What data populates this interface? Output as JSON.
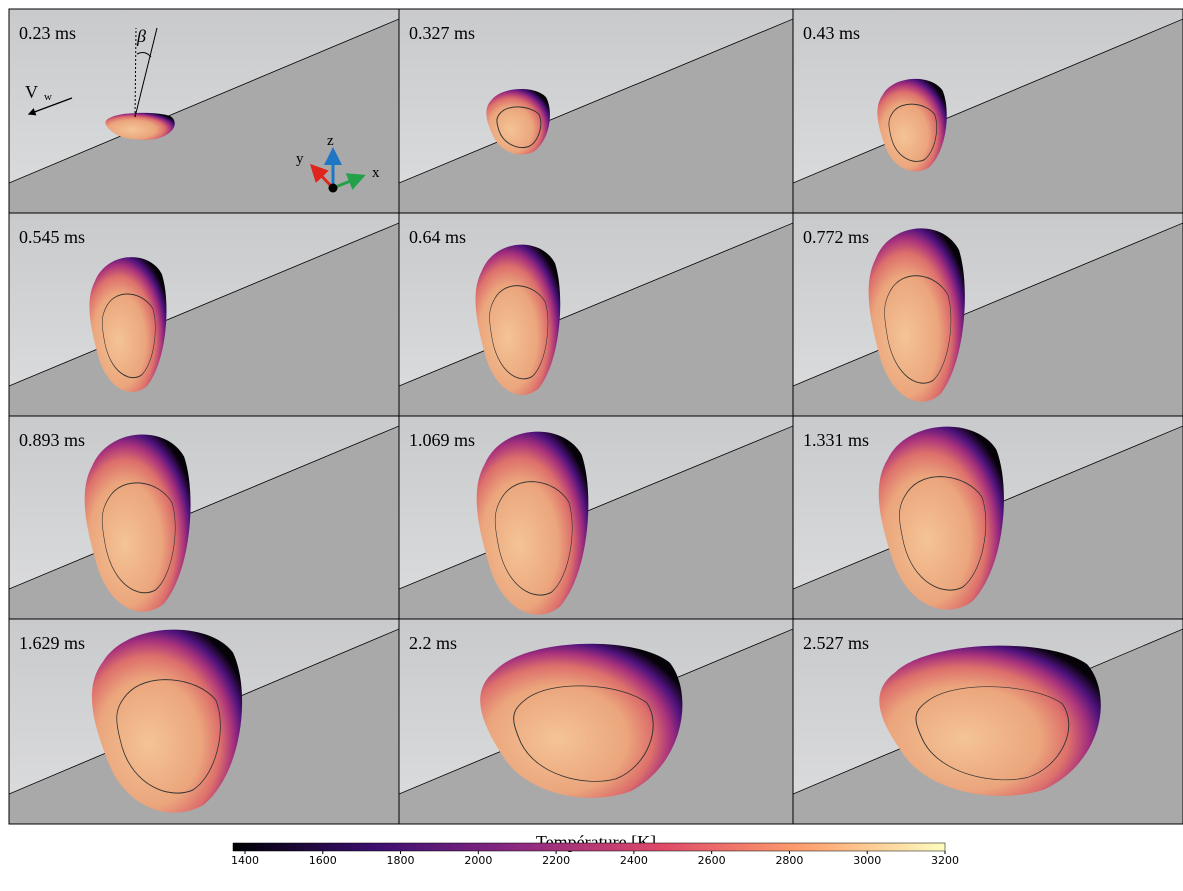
{
  "panels": [
    {
      "time": "0.23 ms"
    },
    {
      "time": "0.327 ms"
    },
    {
      "time": "0.43 ms"
    },
    {
      "time": "0.545 ms"
    },
    {
      "time": "0.64 ms"
    },
    {
      "time": "0.772 ms"
    },
    {
      "time": "0.893 ms"
    },
    {
      "time": "1.069 ms"
    },
    {
      "time": "1.331 ms"
    },
    {
      "time": "1.629 ms"
    },
    {
      "time": "2.2 ms"
    },
    {
      "time": "2.527 ms"
    }
  ],
  "annotations": {
    "angle": "β",
    "velocity": "V",
    "velocity_sub": "w",
    "axis_z": "z",
    "axis_y": "y",
    "axis_x": "x"
  },
  "colorbar": {
    "label": "Température [K]",
    "range": [
      1400,
      3200
    ],
    "ticks": [
      1400,
      1600,
      1800,
      2000,
      2200,
      2400,
      2600,
      2800,
      3000,
      3200
    ]
  }
}
